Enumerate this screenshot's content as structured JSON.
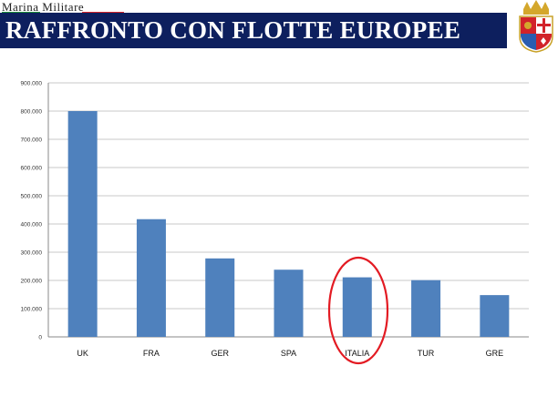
{
  "header": {
    "logo_text": "Marina Militare",
    "title": "RAFFRONTO CON FLOTTE EUROPEE"
  },
  "chart_data": {
    "type": "bar",
    "categories": [
      "UK",
      "FRA",
      "GER",
      "SPA",
      "ITALIA",
      "TUR",
      "GRE"
    ],
    "values": [
      800000,
      417000,
      278000,
      238000,
      211000,
      201000,
      148000
    ],
    "ylim": [
      0,
      900000
    ],
    "yticks": [
      "0",
      "100.000",
      "200.000",
      "300.000",
      "400.000",
      "500.000",
      "600.000",
      "700.000",
      "800.000",
      "900.000"
    ],
    "grid": true,
    "highlight": "ITALIA",
    "colors": {
      "bar": "#4f81bd",
      "highlight_ring": "#e31b23",
      "title_bar": "#0d1f5e"
    }
  }
}
